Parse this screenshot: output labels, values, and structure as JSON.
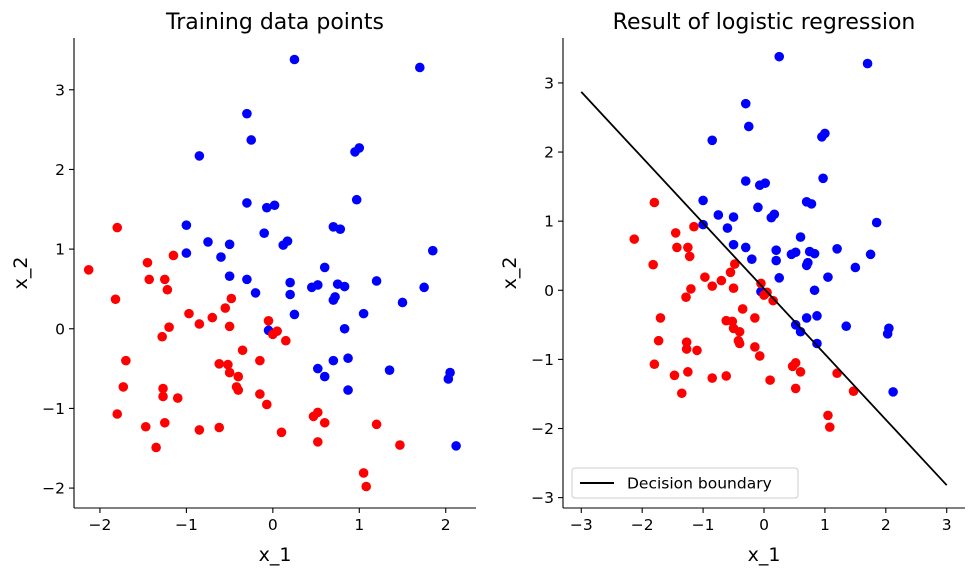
{
  "colors": {
    "class0": "#ff0000",
    "class1": "#0000ff",
    "line": "#000000"
  },
  "chart_data": [
    {
      "type": "scatter",
      "title": "Training data points",
      "xlabel": "x_1",
      "ylabel": "x_2",
      "xlim": [
        -2.3,
        2.35
      ],
      "ylim": [
        -2.25,
        3.65
      ],
      "xticks": [
        -2,
        -1,
        0,
        1,
        2
      ],
      "yticks": [
        -2,
        -1,
        0,
        1,
        2,
        3
      ],
      "series": [
        {
          "color": "#0000ff",
          "points": [
            [
              0.25,
              3.38
            ],
            [
              1.7,
              3.28
            ],
            [
              -0.3,
              2.7
            ],
            [
              -0.25,
              2.37
            ],
            [
              -0.85,
              2.17
            ],
            [
              1.0,
              2.27
            ],
            [
              0.95,
              2.22
            ],
            [
              0.97,
              1.62
            ],
            [
              -0.3,
              1.58
            ],
            [
              -0.07,
              1.52
            ],
            [
              0.02,
              1.55
            ],
            [
              -0.1,
              1.2
            ],
            [
              -1.0,
              1.3
            ],
            [
              -0.75,
              1.09
            ],
            [
              -0.5,
              1.06
            ],
            [
              0.7,
              1.28
            ],
            [
              0.78,
              1.25
            ],
            [
              -1.0,
              0.95
            ],
            [
              0.12,
              1.05
            ],
            [
              0.17,
              1.1
            ],
            [
              -0.6,
              0.9
            ],
            [
              1.85,
              0.98
            ],
            [
              0.6,
              0.77
            ],
            [
              -0.5,
              0.66
            ],
            [
              -0.3,
              0.62
            ],
            [
              0.2,
              0.58
            ],
            [
              0.45,
              0.52
            ],
            [
              0.52,
              0.55
            ],
            [
              0.75,
              0.56
            ],
            [
              0.83,
              0.53
            ],
            [
              1.2,
              0.6
            ],
            [
              1.75,
              0.52
            ],
            [
              -0.2,
              0.45
            ],
            [
              0.2,
              0.43
            ],
            [
              0.25,
              0.18
            ],
            [
              0.7,
              0.36
            ],
            [
              0.72,
              0.4
            ],
            [
              1.05,
              0.19
            ],
            [
              1.5,
              0.33
            ],
            [
              0.83,
              0.0
            ],
            [
              -0.05,
              -0.02
            ],
            [
              0.7,
              -0.4
            ],
            [
              0.87,
              -0.37
            ],
            [
              0.52,
              -0.5
            ],
            [
              0.6,
              -0.6
            ],
            [
              1.35,
              -0.52
            ],
            [
              2.05,
              -0.55
            ],
            [
              2.03,
              -0.63
            ],
            [
              0.87,
              -0.77
            ],
            [
              2.12,
              -1.47
            ]
          ]
        },
        {
          "color": "#ff0000",
          "points": [
            [
              -2.13,
              0.74
            ],
            [
              -1.8,
              1.27
            ],
            [
              -1.82,
              0.37
            ],
            [
              -1.45,
              0.83
            ],
            [
              -1.43,
              0.62
            ],
            [
              -1.25,
              0.62
            ],
            [
              -1.15,
              0.92
            ],
            [
              -1.22,
              0.49
            ],
            [
              -1.7,
              -0.4
            ],
            [
              -1.73,
              -0.73
            ],
            [
              -1.8,
              -1.07
            ],
            [
              -1.28,
              -0.1
            ],
            [
              -1.2,
              0.02
            ],
            [
              -1.27,
              -0.75
            ],
            [
              -1.27,
              -0.85
            ],
            [
              -1.25,
              -1.18
            ],
            [
              -1.1,
              -0.87
            ],
            [
              -1.47,
              -1.23
            ],
            [
              -1.35,
              -1.49
            ],
            [
              -0.97,
              0.19
            ],
            [
              -0.85,
              0.06
            ],
            [
              -0.7,
              0.14
            ],
            [
              -0.55,
              0.26
            ],
            [
              -0.48,
              0.38
            ],
            [
              -0.5,
              0.03
            ],
            [
              -0.35,
              -0.27
            ],
            [
              -0.62,
              -0.44
            ],
            [
              -0.52,
              -0.45
            ],
            [
              -0.5,
              -0.55
            ],
            [
              -0.4,
              -0.6
            ],
            [
              -0.42,
              -0.73
            ],
            [
              -0.4,
              -0.77
            ],
            [
              -0.15,
              -0.4
            ],
            [
              -0.15,
              -0.82
            ],
            [
              -0.05,
              0.1
            ],
            [
              0.05,
              -0.03
            ],
            [
              0.0,
              -0.07
            ],
            [
              0.15,
              -0.15
            ],
            [
              -0.07,
              -0.95
            ],
            [
              -0.85,
              -1.27
            ],
            [
              -0.62,
              -1.24
            ],
            [
              0.1,
              -1.3
            ],
            [
              0.47,
              -1.1
            ],
            [
              0.52,
              -1.05
            ],
            [
              0.6,
              -1.18
            ],
            [
              0.52,
              -1.42
            ],
            [
              1.2,
              -1.2
            ],
            [
              1.47,
              -1.46
            ],
            [
              1.05,
              -1.81
            ],
            [
              1.08,
              -1.98
            ]
          ]
        }
      ]
    },
    {
      "type": "scatter",
      "title": "Result of logistic regression",
      "xlabel": "x_1",
      "ylabel": "x_2",
      "xlim": [
        -3.3,
        3.3
      ],
      "ylim": [
        -3.15,
        3.65
      ],
      "xticks": [
        -3,
        -2,
        -1,
        0,
        1,
        2,
        3
      ],
      "yticks": [
        -3,
        -2,
        -1,
        0,
        1,
        2,
        3
      ],
      "legend": {
        "label": "Decision boundary",
        "placement": "lower-left"
      },
      "line": {
        "x": [
          -3,
          3
        ],
        "y": [
          2.87,
          -2.82
        ]
      }
    }
  ]
}
